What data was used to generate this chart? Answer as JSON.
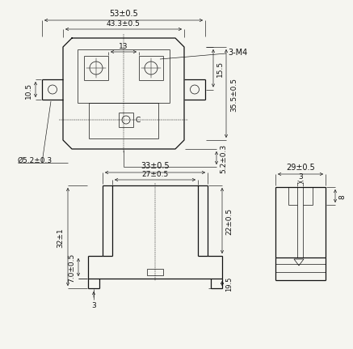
{
  "bg_color": "#f5f5f0",
  "line_color": "#111111",
  "lw": 0.9,
  "thin_lw": 0.5,
  "dlw": 0.45,
  "ann": {
    "top_width": "53±0.5",
    "inner_width": "43.3±0.5",
    "center_dim": "13",
    "screw_label": "3-M4",
    "left_dim": "10.5",
    "right_dim1": "15.5",
    "right_dim2": "35.5±0.5",
    "vert_dim": "5.2±0.3",
    "hole_label": "Ø5.2±0.3",
    "bot_width": "33±0.5",
    "bot_inner": "27±0.5",
    "bot_height": "22±0.5",
    "bot_step": "19.5",
    "bot_foot": "3",
    "left_h1": "32±1",
    "left_h2": "7.0±0.5",
    "rv_width": "29±0.5",
    "rv_d1": "3",
    "rv_d2": "8"
  },
  "fig_w": 4.06,
  "fig_h": 4.12
}
